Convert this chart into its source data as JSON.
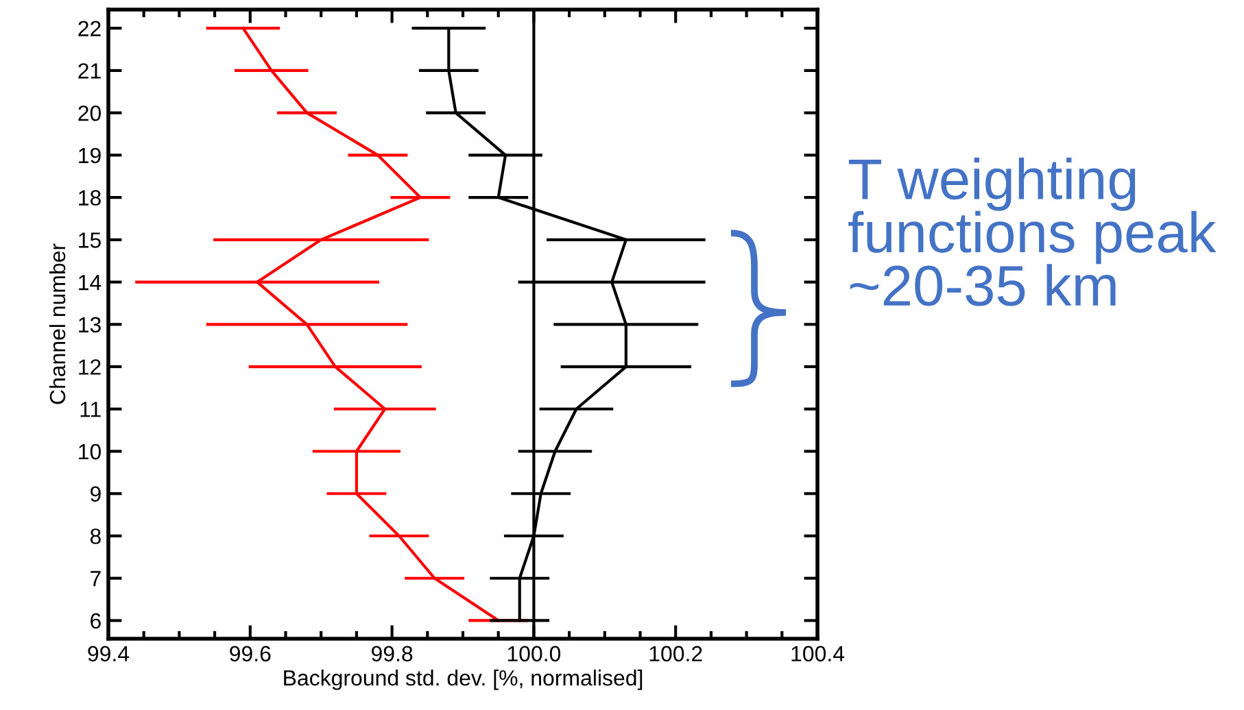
{
  "chart_data": {
    "type": "line",
    "orientation": "horizontal",
    "xlabel": "Background std. dev. [%, normalised]",
    "ylabel": "Channel number",
    "categories": [
      "22",
      "21",
      "20",
      "19",
      "18",
      "15",
      "14",
      "13",
      "12",
      "11",
      "10",
      "9",
      "8",
      "7",
      "6"
    ],
    "series": [
      {
        "color": "#ff0000",
        "values": [
          99.59,
          99.63,
          99.68,
          99.78,
          99.84,
          99.7,
          99.61,
          99.68,
          99.72,
          99.79,
          99.75,
          99.75,
          99.81,
          99.86,
          99.95
        ],
        "errors": [
          0.05,
          0.05,
          0.04,
          0.04,
          0.04,
          0.15,
          0.17,
          0.14,
          0.12,
          0.07,
          0.06,
          0.04,
          0.04,
          0.04,
          0.04
        ]
      },
      {
        "color": "#000000",
        "values": [
          99.88,
          99.88,
          99.89,
          99.96,
          99.95,
          100.13,
          100.11,
          100.13,
          100.13,
          100.06,
          100.03,
          100.01,
          100.0,
          99.98,
          99.98
        ],
        "errors": [
          0.05,
          0.04,
          0.04,
          0.05,
          0.04,
          0.11,
          0.13,
          0.1,
          0.09,
          0.05,
          0.05,
          0.04,
          0.04,
          0.04,
          0.04
        ]
      }
    ],
    "xlim": [
      99.4,
      100.4
    ],
    "xticks": [
      99.4,
      99.6,
      99.8,
      {
        "value": 100.0,
        "label": "100.0"
      },
      100.2,
      100.4
    ],
    "ref_lines": [
      {
        "axis": "x",
        "value": 100.0,
        "color": "#000000"
      }
    ],
    "annotations": [
      "T weighting functions peak ~20-35 km"
    ],
    "grid": false,
    "legend": false,
    "marker": "none",
    "line_style": "solid"
  }
}
